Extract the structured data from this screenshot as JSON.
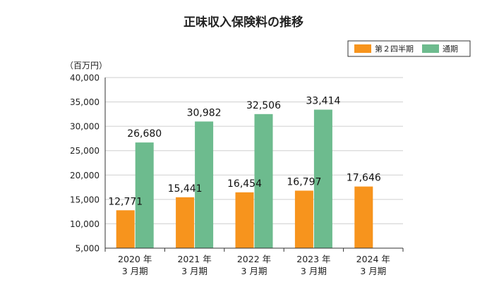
{
  "chart_data": {
    "type": "bar",
    "title": "正味収入保険料の推移",
    "unit_label": "（百万円）",
    "categories": [
      [
        "2020 年",
        "3 月期"
      ],
      [
        "2021 年",
        "3 月期"
      ],
      [
        "2022 年",
        "3 月期"
      ],
      [
        "2023 年",
        "3 月期"
      ],
      [
        "2024 年",
        "3 月期"
      ]
    ],
    "series": [
      {
        "name": "第２四半期",
        "color": "#f7941d",
        "values": [
          12771,
          15441,
          16454,
          16797,
          17646
        ],
        "labels": [
          "12,771",
          "15,441",
          "16,454",
          "16,797",
          "17,646"
        ]
      },
      {
        "name": "通期",
        "color": "#6dbb8e",
        "values": [
          26680,
          30982,
          32506,
          33414,
          null
        ],
        "labels": [
          "26,680",
          "30,982",
          "32,506",
          "33,414",
          ""
        ]
      }
    ],
    "ylim": [
      5000,
      40000
    ],
    "yticks": [
      5000,
      10000,
      15000,
      20000,
      25000,
      30000,
      35000,
      40000
    ],
    "ytick_labels": [
      "5,000",
      "10,000",
      "15,000",
      "20,000",
      "25,000",
      "30,000",
      "35,000",
      "40,000"
    ],
    "grid": true,
    "legend_position": "top-right"
  }
}
